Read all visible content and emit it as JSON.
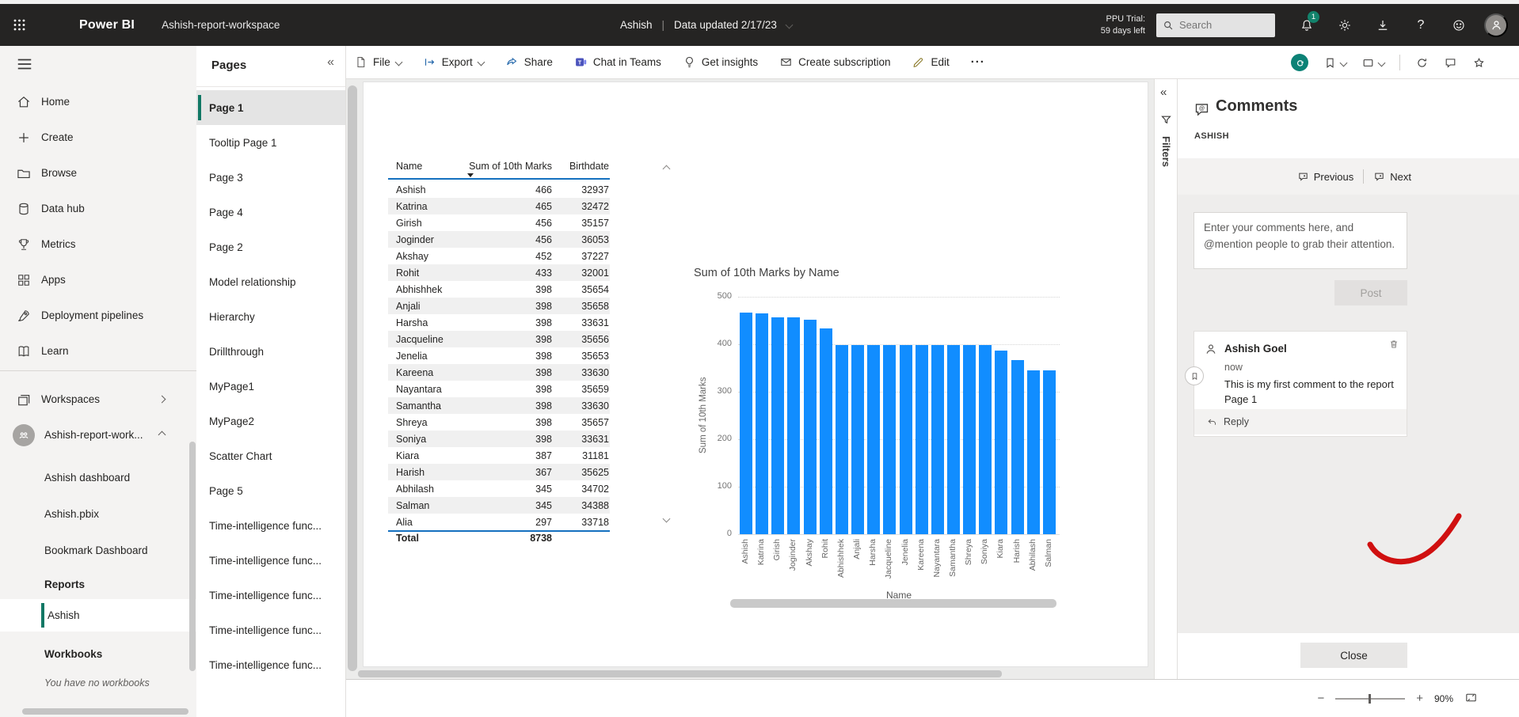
{
  "topbar": {
    "brand": "Power BI",
    "workspace": "Ashish-report-workspace",
    "user": "Ashish",
    "pipe": "|",
    "data_updated": "Data updated 2/17/23",
    "trial_line1": "PPU Trial:",
    "trial_line2": "59 days left",
    "search_placeholder": "Search",
    "notification_badge": "1",
    "help_label": "?"
  },
  "sidebar": {
    "items": [
      {
        "label": "Home",
        "icon": "home"
      },
      {
        "label": "Create",
        "icon": "plus"
      },
      {
        "label": "Browse",
        "icon": "folder"
      },
      {
        "label": "Data hub",
        "icon": "db"
      },
      {
        "label": "Metrics",
        "icon": "trophy"
      },
      {
        "label": "Apps",
        "icon": "grid"
      },
      {
        "label": "Deployment pipelines",
        "icon": "rocket"
      },
      {
        "label": "Learn",
        "icon": "book"
      }
    ],
    "workspaces_label": "Workspaces",
    "workspace_name": "Ashish-report-work...",
    "workspace_items": [
      "Ashish dashboard",
      "Ashish.pbix",
      "Bookmark Dashboard"
    ],
    "reports_header": "Reports",
    "selected_report": "Ashish",
    "workbooks_header": "Workbooks",
    "workbooks_empty": "You have no workbooks"
  },
  "pages": {
    "title": "Pages",
    "selected_index": 0,
    "items": [
      "Page 1",
      "Tooltip Page 1",
      "Page 3",
      "Page 4",
      "Page 2",
      "Model relationship",
      "Hierarchy",
      "Drillthrough",
      "MyPage1",
      "MyPage2",
      "Scatter Chart",
      "Page 5",
      "Time-intelligence func...",
      "Time-intelligence func...",
      "Time-intelligence func...",
      "Time-intelligence func...",
      "Time-intelligence func..."
    ]
  },
  "toolbar": {
    "file": "File",
    "export": "Export",
    "share": "Share",
    "chat": "Chat in Teams",
    "insights": "Get insights",
    "subscription": "Create subscription",
    "edit": "Edit",
    "more": "···"
  },
  "report": {
    "table": {
      "headers": [
        "Name",
        "Sum of 10th Marks",
        "Birthdate"
      ],
      "rows": [
        [
          "Ashish",
          "466",
          "32937"
        ],
        [
          "Katrina",
          "465",
          "32472"
        ],
        [
          "Girish",
          "456",
          "35157"
        ],
        [
          "Joginder",
          "456",
          "36053"
        ],
        [
          "Akshay",
          "452",
          "37227"
        ],
        [
          "Rohit",
          "433",
          "32001"
        ],
        [
          "Abhishhek",
          "398",
          "35654"
        ],
        [
          "Anjali",
          "398",
          "35658"
        ],
        [
          "Harsha",
          "398",
          "33631"
        ],
        [
          "Jacqueline",
          "398",
          "35656"
        ],
        [
          "Jenelia",
          "398",
          "35653"
        ],
        [
          "Kareena",
          "398",
          "33630"
        ],
        [
          "Nayantara",
          "398",
          "35659"
        ],
        [
          "Samantha",
          "398",
          "33630"
        ],
        [
          "Shreya",
          "398",
          "35657"
        ],
        [
          "Soniya",
          "398",
          "33631"
        ],
        [
          "Kiara",
          "387",
          "31181"
        ],
        [
          "Harish",
          "367",
          "35625"
        ],
        [
          "Abhilash",
          "345",
          "34702"
        ],
        [
          "Salman",
          "345",
          "34388"
        ],
        [
          "Alia",
          "297",
          "33718"
        ]
      ],
      "total_label": "Total",
      "total_value": "8738"
    }
  },
  "chart_data": {
    "type": "bar",
    "title": "Sum of 10th Marks by Name",
    "xlabel": "Name",
    "ylabel": "Sum of 10th Marks",
    "categories": [
      "Ashish",
      "Katrina",
      "Girish",
      "Joginder",
      "Akshay",
      "Rohit",
      "Abhishhek",
      "Anjali",
      "Harsha",
      "Jacqueline",
      "Jenelia",
      "Kareena",
      "Nayantara",
      "Samantha",
      "Shreya",
      "Soniya",
      "Kiara",
      "Harish",
      "Abhilash",
      "Salman"
    ],
    "values": [
      466,
      465,
      456,
      456,
      452,
      433,
      398,
      398,
      398,
      398,
      398,
      398,
      398,
      398,
      398,
      398,
      387,
      367,
      345,
      345
    ],
    "ylim": [
      0,
      500
    ],
    "ytick_step": 100,
    "grid": true,
    "legend": false,
    "bar_color": "#118DFF"
  },
  "filters": {
    "label": "Filters"
  },
  "comments": {
    "title": "Comments",
    "scope": "ASHISH",
    "previous": "Previous",
    "next": "Next",
    "input_placeholder": "Enter your comments here, and @mention people to grab their attention.",
    "post": "Post",
    "author": "Ashish Goel",
    "time": "now",
    "body": "This is my first comment to the report Page 1",
    "reply": "Reply",
    "close": "Close"
  },
  "statusbar": {
    "zoom": "90%"
  },
  "colors": {
    "accent_green": "#117865",
    "chart_blue": "#118DFF",
    "table_blue": "#1570bf",
    "ink_red": "#d01010"
  }
}
